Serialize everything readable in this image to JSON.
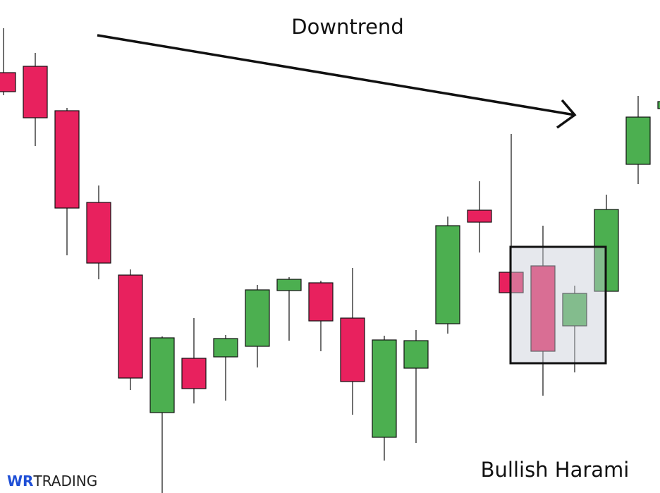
{
  "chart_data": {
    "type": "candlestick",
    "title": "Downtrend",
    "annotation": "Bullish Harami",
    "brand": {
      "bold": "WR",
      "rest": "TRADING"
    },
    "up_color": "#4caf50",
    "down_color": "#e8215e",
    "ylim": [
      0,
      699
    ],
    "open": [
      596,
      605,
      542,
      412,
      309,
      114,
      191,
      193,
      208,
      287,
      298,
      248,
      79,
      177,
      240,
      401,
      313,
      322,
      237,
      286,
      466,
      545
    ],
    "high": [
      659,
      624,
      546,
      436,
      317,
      222,
      248,
      224,
      295,
      306,
      301,
      319,
      223,
      231,
      392,
      442,
      509,
      379,
      294,
      423,
      563,
      555
    ],
    "low": [
      564,
      492,
      337,
      303,
      146,
      0,
      127,
      131,
      178,
      216,
      201,
      111,
      46,
      71,
      226,
      341,
      284,
      138,
      171,
      286,
      438,
      545
    ],
    "close": [
      569,
      532,
      404,
      326,
      163,
      220,
      148,
      219,
      288,
      303,
      244,
      158,
      217,
      216,
      379,
      384,
      284,
      201,
      283,
      402,
      533,
      555
    ]
  }
}
